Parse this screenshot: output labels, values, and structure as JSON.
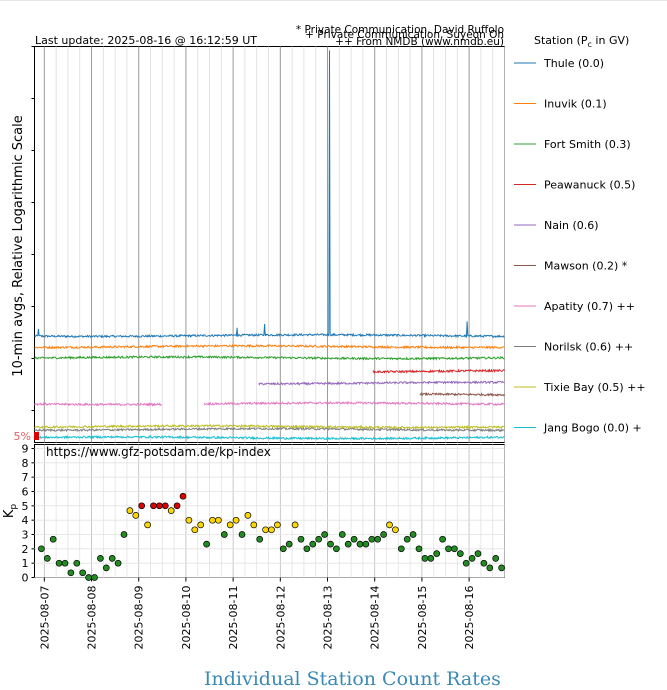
{
  "header": {
    "last_update": "Last update: 2025-08-16 @ 16:12:59 UT",
    "note_private_ruffolo": "* Private Communication, David Ruffolo",
    "note_private_oh": "+ Private Communication, Suyeon Oh",
    "note_nmdb": "++ From NMDB (www.nmdb.eu)"
  },
  "chart_data": [
    {
      "type": "line",
      "ylabel": "10-min avgs, Relative Logarithmic Scale",
      "legend_title": "Station (Pc in GV)",
      "legend_position": "right",
      "threshold_label": "5%",
      "x_range": [
        "2025-08-06T19:00",
        "2025-08-16T18:00"
      ],
      "series": [
        {
          "name": "Thule (0.0)",
          "color": "#1f77b4",
          "level": 0.27,
          "start": "2025-08-06T19:00",
          "end": "2025-08-16T18:00",
          "spikes": [
            [
              "2025-08-06T21:00",
              0.02
            ],
            [
              "2025-08-11T02:00",
              0.02
            ],
            [
              "2025-08-11T16:00",
              0.03
            ],
            [
              "2025-08-13T01:00",
              0.72
            ],
            [
              "2025-08-15T23:00",
              0.035
            ]
          ]
        },
        {
          "name": "Inuvik (0.1)",
          "color": "#ff7f0e",
          "level": 0.242,
          "start": "2025-08-06T19:00",
          "end": "2025-08-16T18:00",
          "spikes": []
        },
        {
          "name": "Fort Smith (0.3)",
          "color": "#2ca02c",
          "level": 0.214,
          "start": "2025-08-06T19:00",
          "end": "2025-08-16T18:00",
          "spikes": []
        },
        {
          "name": "Peawanuck (0.5)",
          "color": "#d62728",
          "level": 0.18,
          "start": "2025-08-13T23:00",
          "end": "2025-08-16T18:00",
          "spikes": []
        },
        {
          "name": "Nain (0.6)",
          "color": "#9467bd",
          "level": 0.15,
          "start": "2025-08-11T13:00",
          "end": "2025-08-16T18:00",
          "spikes": []
        },
        {
          "name": "Mawson (0.2) *",
          "color": "#8c564b",
          "level": 0.12,
          "start": "2025-08-14T23:00",
          "end": "2025-08-16T18:00",
          "spikes": []
        },
        {
          "name": "Apatity (0.7) ++",
          "color": "#e377c2",
          "level": 0.098,
          "start": "2025-08-06T19:00",
          "end": "2025-08-16T18:00",
          "gap": [
            "2025-08-09T12:00",
            "2025-08-10T09:00"
          ],
          "spikes": []
        },
        {
          "name": "Norilsk (0.6) ++",
          "color": "#7f7f7f",
          "level": 0.033,
          "start": "2025-08-06T19:00",
          "end": "2025-08-16T18:00",
          "spikes": []
        },
        {
          "name": "Tixie Bay (0.5) ++",
          "color": "#bcbd22",
          "level": 0.04,
          "start": "2025-08-06T19:00",
          "end": "2025-08-16T18:00",
          "spikes": []
        },
        {
          "name": "Jang Bogo (0.0) +",
          "color": "#17becf",
          "level": 0.012,
          "start": "2025-08-06T19:00",
          "end": "2025-08-16T18:00",
          "spikes": []
        }
      ]
    },
    {
      "type": "scatter",
      "ylabel": "Kp",
      "annotation": "https://www.gfz-potsdam.de/kp-index",
      "ylim": [
        0,
        9
      ],
      "yticks": [
        "0",
        "1",
        "2",
        "3",
        "4",
        "5",
        "6",
        "7",
        "8",
        "9"
      ],
      "xticks": [
        "2025-08-07",
        "2025-08-08",
        "2025-08-09",
        "2025-08-10",
        "2025-08-11",
        "2025-08-12",
        "2025-08-13",
        "2025-08-14",
        "2025-08-15",
        "2025-08-16"
      ],
      "grid": true,
      "colors": {
        "low": "#228b22",
        "mid": "#ffd700",
        "high": "#dd0000"
      },
      "kp": [
        2.0,
        1.33,
        2.67,
        1.0,
        1.0,
        0.33,
        1.0,
        0.33,
        0.0,
        0.0,
        1.33,
        0.67,
        1.33,
        1.0,
        3.0,
        4.67,
        4.33,
        5.0,
        3.67,
        5.0,
        5.0,
        5.0,
        4.67,
        5.0,
        5.67,
        4.0,
        3.33,
        3.67,
        2.33,
        4.0,
        4.0,
        3.0,
        3.67,
        4.0,
        3.0,
        4.33,
        3.67,
        2.67,
        3.33,
        3.33,
        3.67,
        2.0,
        2.33,
        3.67,
        2.67,
        2.0,
        2.33,
        2.67,
        3.0,
        2.33,
        2.0,
        3.0,
        2.33,
        2.67,
        2.33,
        2.33,
        2.67,
        2.67,
        3.0,
        3.67,
        3.33,
        2.0,
        2.67,
        3.0,
        2.0,
        1.33,
        1.33,
        1.67,
        2.67,
        2.0,
        2.0,
        1.67,
        1.0,
        1.33,
        1.67,
        1.0,
        0.67,
        1.33,
        0.67,
        1.33,
        1.33
      ]
    }
  ],
  "footer": {
    "link_text": "Individual Station Count Rates"
  }
}
